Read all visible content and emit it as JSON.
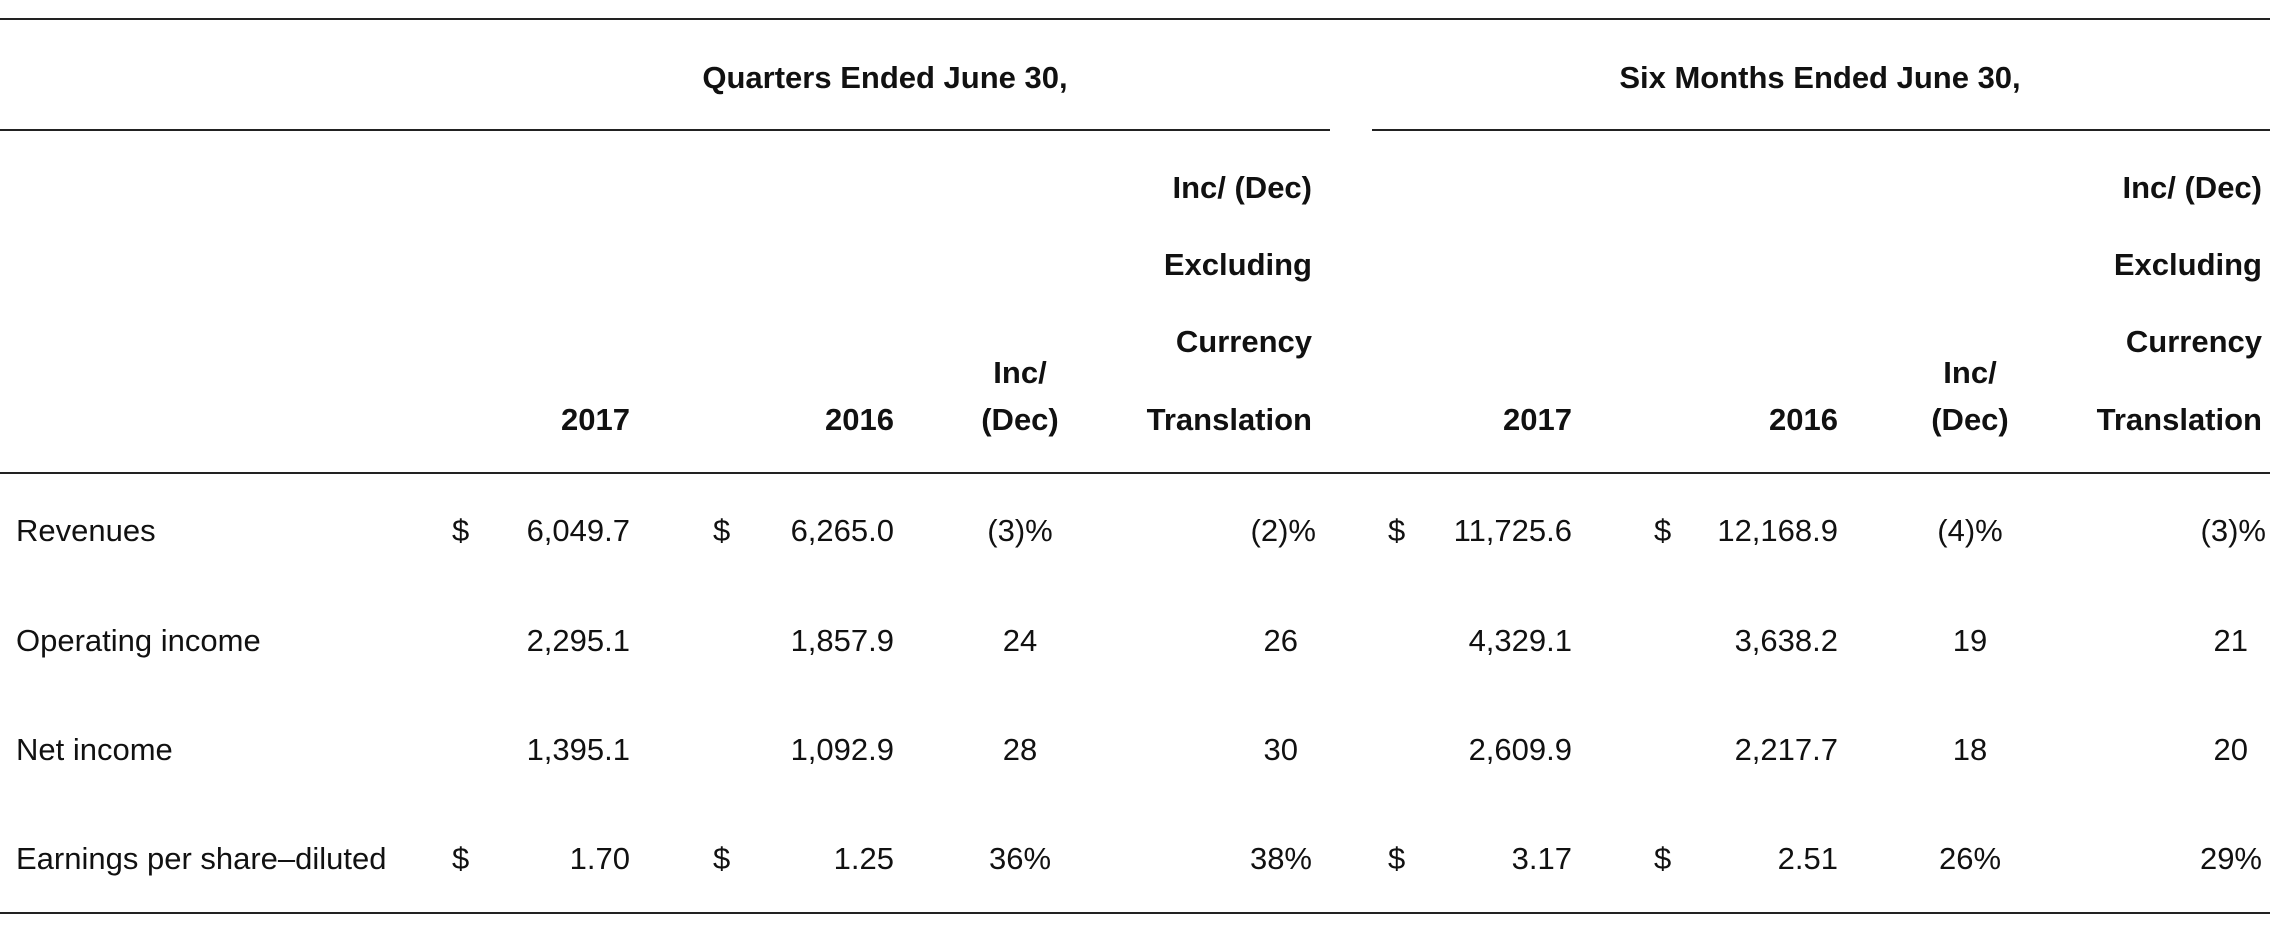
{
  "table": {
    "group_headers": {
      "quarters": "Quarters Ended June 30,",
      "six_months": "Six Months Ended June 30,"
    },
    "columns": {
      "q2017": "2017",
      "q2016": "2016",
      "q_incdec": [
        "Inc/",
        "(Dec)"
      ],
      "q_excl": [
        "Inc/ (Dec)",
        "Excluding",
        "Currency",
        "Translation"
      ],
      "s2017": "2017",
      "s2016": "2016",
      "s_incdec": [
        "Inc/",
        "(Dec)"
      ],
      "s_excl": [
        "Inc/ (Dec)",
        "Excluding",
        "Currency",
        "Translation"
      ]
    },
    "rows": [
      {
        "label": "Revenues",
        "q2017_cur": "$",
        "q2017": "6,049.7",
        "q2016_cur": "$",
        "q2016": "6,265.0",
        "q_incdec": "(3)%",
        "q_excl": "(2)%",
        "s2017_cur": "$",
        "s2017": "11,725.6",
        "s2016_cur": "$",
        "s2016": "12,168.9",
        "s_incdec": "(4)%",
        "s_excl": "(3)%"
      },
      {
        "label": "Operating income",
        "q2017_cur": "",
        "q2017": "2,295.1",
        "q2016_cur": "",
        "q2016": "1,857.9",
        "q_incdec": "24",
        "q_excl": "26",
        "s2017_cur": "",
        "s2017": "4,329.1",
        "s2016_cur": "",
        "s2016": "3,638.2",
        "s_incdec": "19",
        "s_excl": "21"
      },
      {
        "label": "Net income",
        "q2017_cur": "",
        "q2017": "1,395.1",
        "q2016_cur": "",
        "q2016": "1,092.9",
        "q_incdec": "28",
        "q_excl": "30",
        "s2017_cur": "",
        "s2017": "2,609.9",
        "s2016_cur": "",
        "s2016": "2,217.7",
        "s_incdec": "18",
        "s_excl": "20"
      },
      {
        "label": "Earnings per share–diluted",
        "q2017_cur": "$",
        "q2017": "1.70",
        "q2016_cur": "$",
        "q2016": "1.25",
        "q_incdec": "36%",
        "q_excl": "38%",
        "s2017_cur": "$",
        "s2017": "3.17",
        "s2016_cur": "$",
        "s2016": "2.51",
        "s_incdec": "26%",
        "s_excl": "29%"
      }
    ]
  }
}
